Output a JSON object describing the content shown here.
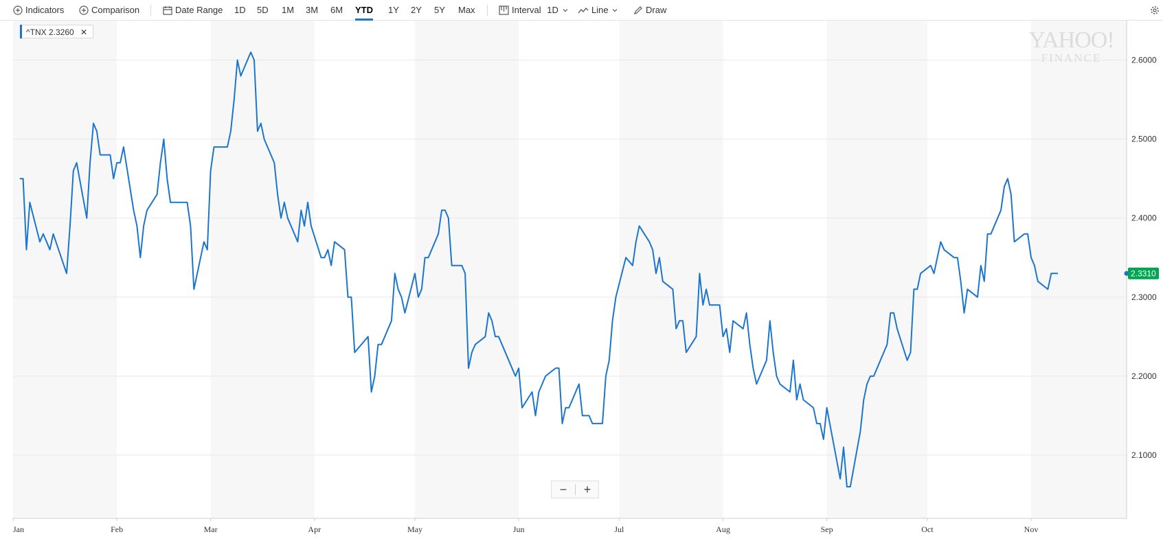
{
  "toolbar": {
    "indicators": "Indicators",
    "comparison": "Comparison",
    "date_range": "Date Range",
    "ranges": [
      "1D",
      "5D",
      "1M",
      "3M",
      "6M",
      "YTD",
      "1Y",
      "2Y",
      "5Y",
      "Max"
    ],
    "active_range": "YTD",
    "interval_label": "Interval",
    "interval_value": "1D",
    "chart_type": "Line",
    "draw": "Draw"
  },
  "legend_chip": {
    "symbol": "^TNX",
    "value": "2.3260"
  },
  "watermark": {
    "line1": "YAHOO!",
    "line2": "FINANCE"
  },
  "zoom": {
    "minus": "−",
    "plus": "+"
  },
  "colors": {
    "line": "#1a75cf",
    "last_price_tag": "#00a551",
    "band": "#f7f7f7",
    "grid": "#e8e8e8"
  },
  "chart_data": {
    "type": "line",
    "title": "",
    "xlabel": "",
    "ylabel": "",
    "x_ticks": [
      "Jan",
      "Feb",
      "Mar",
      "Apr",
      "May",
      "Jun",
      "Jul",
      "Aug",
      "Sep",
      "Oct",
      "Nov"
    ],
    "y_ticks": [
      "2.1000",
      "2.2000",
      "2.3000",
      "2.4000",
      "2.5000",
      "2.6000"
    ],
    "ylim": [
      2.02,
      2.65
    ],
    "grid": true,
    "last_value": "2.3310",
    "series": [
      {
        "name": "^TNX",
        "points": [
          [
            "Jan 3",
            2.45
          ],
          [
            "Jan 4",
            2.45
          ],
          [
            "Jan 5",
            2.36
          ],
          [
            "Jan 6",
            2.42
          ],
          [
            "Jan 9",
            2.37
          ],
          [
            "Jan 10",
            2.38
          ],
          [
            "Jan 11",
            2.37
          ],
          [
            "Jan 12",
            2.36
          ],
          [
            "Jan 13",
            2.38
          ],
          [
            "Jan 17",
            2.33
          ],
          [
            "Jan 18",
            2.39
          ],
          [
            "Jan 19",
            2.46
          ],
          [
            "Jan 20",
            2.47
          ],
          [
            "Jan 23",
            2.4
          ],
          [
            "Jan 24",
            2.47
          ],
          [
            "Jan 25",
            2.52
          ],
          [
            "Jan 26",
            2.51
          ],
          [
            "Jan 27",
            2.48
          ],
          [
            "Jan 30",
            2.48
          ],
          [
            "Jan 31",
            2.45
          ],
          [
            "Feb 1",
            2.47
          ],
          [
            "Feb 2",
            2.47
          ],
          [
            "Feb 3",
            2.49
          ],
          [
            "Feb 6",
            2.41
          ],
          [
            "Feb 7",
            2.39
          ],
          [
            "Feb 8",
            2.35
          ],
          [
            "Feb 9",
            2.39
          ],
          [
            "Feb 10",
            2.41
          ],
          [
            "Feb 13",
            2.43
          ],
          [
            "Feb 14",
            2.47
          ],
          [
            "Feb 15",
            2.5
          ],
          [
            "Feb 16",
            2.45
          ],
          [
            "Feb 17",
            2.42
          ],
          [
            "Feb 21",
            2.42
          ],
          [
            "Feb 22",
            2.42
          ],
          [
            "Feb 23",
            2.39
          ],
          [
            "Feb 24",
            2.31
          ],
          [
            "Feb 27",
            2.37
          ],
          [
            "Feb 28",
            2.36
          ],
          [
            "Mar 1",
            2.46
          ],
          [
            "Mar 2",
            2.49
          ],
          [
            "Mar 3",
            2.49
          ],
          [
            "Mar 6",
            2.49
          ],
          [
            "Mar 7",
            2.51
          ],
          [
            "Mar 8",
            2.55
          ],
          [
            "Mar 9",
            2.6
          ],
          [
            "Mar 10",
            2.58
          ],
          [
            "Mar 13",
            2.61
          ],
          [
            "Mar 14",
            2.6
          ],
          [
            "Mar 15",
            2.51
          ],
          [
            "Mar 16",
            2.52
          ],
          [
            "Mar 17",
            2.5
          ],
          [
            "Mar 20",
            2.47
          ],
          [
            "Mar 21",
            2.43
          ],
          [
            "Mar 22",
            2.4
          ],
          [
            "Mar 23",
            2.42
          ],
          [
            "Mar 24",
            2.4
          ],
          [
            "Mar 27",
            2.37
          ],
          [
            "Mar 28",
            2.41
          ],
          [
            "Mar 29",
            2.39
          ],
          [
            "Mar 30",
            2.42
          ],
          [
            "Mar 31",
            2.39
          ],
          [
            "Apr 3",
            2.35
          ],
          [
            "Apr 4",
            2.35
          ],
          [
            "Apr 5",
            2.36
          ],
          [
            "Apr 6",
            2.34
          ],
          [
            "Apr 7",
            2.37
          ],
          [
            "Apr 10",
            2.36
          ],
          [
            "Apr 11",
            2.3
          ],
          [
            "Apr 12",
            2.3
          ],
          [
            "Apr 13",
            2.23
          ],
          [
            "Apr 17",
            2.25
          ],
          [
            "Apr 18",
            2.18
          ],
          [
            "Apr 19",
            2.2
          ],
          [
            "Apr 20",
            2.24
          ],
          [
            "Apr 21",
            2.24
          ],
          [
            "Apr 24",
            2.27
          ],
          [
            "Apr 25",
            2.33
          ],
          [
            "Apr 26",
            2.31
          ],
          [
            "Apr 27",
            2.3
          ],
          [
            "Apr 28",
            2.28
          ],
          [
            "May 1",
            2.33
          ],
          [
            "May 2",
            2.3
          ],
          [
            "May 3",
            2.31
          ],
          [
            "May 4",
            2.35
          ],
          [
            "May 5",
            2.35
          ],
          [
            "May 8",
            2.38
          ],
          [
            "May 9",
            2.41
          ],
          [
            "May 10",
            2.41
          ],
          [
            "May 11",
            2.4
          ],
          [
            "May 12",
            2.34
          ],
          [
            "May 15",
            2.34
          ],
          [
            "May 16",
            2.33
          ],
          [
            "May 17",
            2.21
          ],
          [
            "May 18",
            2.23
          ],
          [
            "May 19",
            2.24
          ],
          [
            "May 22",
            2.25
          ],
          [
            "May 23",
            2.28
          ],
          [
            "May 24",
            2.27
          ],
          [
            "May 25",
            2.25
          ],
          [
            "May 26",
            2.25
          ],
          [
            "May 30",
            2.21
          ],
          [
            "May 31",
            2.2
          ],
          [
            "Jun 1",
            2.21
          ],
          [
            "Jun 2",
            2.16
          ],
          [
            "Jun 5",
            2.18
          ],
          [
            "Jun 6",
            2.15
          ],
          [
            "Jun 7",
            2.18
          ],
          [
            "Jun 8",
            2.19
          ],
          [
            "Jun 9",
            2.2
          ],
          [
            "Jun 12",
            2.21
          ],
          [
            "Jun 13",
            2.21
          ],
          [
            "Jun 14",
            2.14
          ],
          [
            "Jun 15",
            2.16
          ],
          [
            "Jun 16",
            2.16
          ],
          [
            "Jun 19",
            2.19
          ],
          [
            "Jun 20",
            2.15
          ],
          [
            "Jun 21",
            2.15
          ],
          [
            "Jun 22",
            2.15
          ],
          [
            "Jun 23",
            2.14
          ],
          [
            "Jun 26",
            2.14
          ],
          [
            "Jun 27",
            2.2
          ],
          [
            "Jun 28",
            2.22
          ],
          [
            "Jun 29",
            2.27
          ],
          [
            "Jun 30",
            2.3
          ],
          [
            "Jul 3",
            2.35
          ],
          [
            "Jul 5",
            2.34
          ],
          [
            "Jul 6",
            2.37
          ],
          [
            "Jul 7",
            2.39
          ],
          [
            "Jul 10",
            2.37
          ],
          [
            "Jul 11",
            2.36
          ],
          [
            "Jul 12",
            2.33
          ],
          [
            "Jul 13",
            2.35
          ],
          [
            "Jul 14",
            2.32
          ],
          [
            "Jul 17",
            2.31
          ],
          [
            "Jul 18",
            2.26
          ],
          [
            "Jul 19",
            2.27
          ],
          [
            "Jul 20",
            2.27
          ],
          [
            "Jul 21",
            2.23
          ],
          [
            "Jul 24",
            2.25
          ],
          [
            "Jul 25",
            2.33
          ],
          [
            "Jul 26",
            2.29
          ],
          [
            "Jul 27",
            2.31
          ],
          [
            "Jul 28",
            2.29
          ],
          [
            "Jul 31",
            2.29
          ],
          [
            "Aug 1",
            2.25
          ],
          [
            "Aug 2",
            2.26
          ],
          [
            "Aug 3",
            2.23
          ],
          [
            "Aug 4",
            2.27
          ],
          [
            "Aug 7",
            2.26
          ],
          [
            "Aug 8",
            2.28
          ],
          [
            "Aug 9",
            2.24
          ],
          [
            "Aug 10",
            2.21
          ],
          [
            "Aug 11",
            2.19
          ],
          [
            "Aug 14",
            2.22
          ],
          [
            "Aug 15",
            2.27
          ],
          [
            "Aug 16",
            2.23
          ],
          [
            "Aug 17",
            2.2
          ],
          [
            "Aug 18",
            2.19
          ],
          [
            "Aug 21",
            2.18
          ],
          [
            "Aug 22",
            2.22
          ],
          [
            "Aug 23",
            2.17
          ],
          [
            "Aug 24",
            2.19
          ],
          [
            "Aug 25",
            2.17
          ],
          [
            "Aug 28",
            2.16
          ],
          [
            "Aug 29",
            2.14
          ],
          [
            "Aug 30",
            2.14
          ],
          [
            "Aug 31",
            2.12
          ],
          [
            "Sep 1",
            2.16
          ],
          [
            "Sep 5",
            2.07
          ],
          [
            "Sep 6",
            2.11
          ],
          [
            "Sep 7",
            2.06
          ],
          [
            "Sep 8",
            2.06
          ],
          [
            "Sep 11",
            2.13
          ],
          [
            "Sep 12",
            2.17
          ],
          [
            "Sep 13",
            2.19
          ],
          [
            "Sep 14",
            2.2
          ],
          [
            "Sep 15",
            2.2
          ],
          [
            "Sep 18",
            2.23
          ],
          [
            "Sep 19",
            2.24
          ],
          [
            "Sep 20",
            2.28
          ],
          [
            "Sep 21",
            2.28
          ],
          [
            "Sep 22",
            2.26
          ],
          [
            "Sep 25",
            2.22
          ],
          [
            "Sep 26",
            2.23
          ],
          [
            "Sep 27",
            2.31
          ],
          [
            "Sep 28",
            2.31
          ],
          [
            "Sep 29",
            2.33
          ],
          [
            "Oct 2",
            2.34
          ],
          [
            "Oct 3",
            2.33
          ],
          [
            "Oct 4",
            2.35
          ],
          [
            "Oct 5",
            2.37
          ],
          [
            "Oct 6",
            2.36
          ],
          [
            "Oct 9",
            2.35
          ],
          [
            "Oct 10",
            2.35
          ],
          [
            "Oct 11",
            2.32
          ],
          [
            "Oct 12",
            2.28
          ],
          [
            "Oct 13",
            2.31
          ],
          [
            "Oct 16",
            2.3
          ],
          [
            "Oct 17",
            2.34
          ],
          [
            "Oct 18",
            2.32
          ],
          [
            "Oct 19",
            2.38
          ],
          [
            "Oct 20",
            2.38
          ],
          [
            "Oct 23",
            2.41
          ],
          [
            "Oct 24",
            2.44
          ],
          [
            "Oct 25",
            2.45
          ],
          [
            "Oct 26",
            2.43
          ],
          [
            "Oct 27",
            2.37
          ],
          [
            "Oct 30",
            2.38
          ],
          [
            "Oct 31",
            2.38
          ],
          [
            "Nov 1",
            2.35
          ],
          [
            "Nov 2",
            2.34
          ],
          [
            "Nov 3",
            2.32
          ],
          [
            "Nov 6",
            2.31
          ],
          [
            "Nov 7",
            2.33
          ],
          [
            "Nov 8",
            2.33
          ],
          [
            "Nov 9",
            2.33
          ]
        ]
      }
    ]
  }
}
